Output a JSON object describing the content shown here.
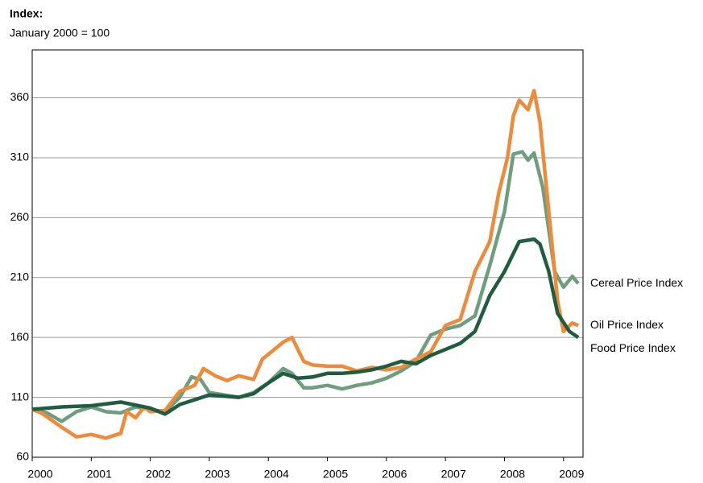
{
  "chart_data": {
    "type": "line",
    "title": "Index:",
    "subtitle": "January 2000 = 100",
    "xlim": [
      2000,
      2009.33
    ],
    "xticks": [
      2000,
      2001,
      2002,
      2003,
      2004,
      2005,
      2006,
      2007,
      2008,
      2009
    ],
    "ylim": [
      60,
      400
    ],
    "yticks": [
      60,
      110,
      160,
      210,
      260,
      310,
      360
    ],
    "grid": true,
    "series": [
      {
        "name": "Cereal Price Index",
        "color": "#6f9e7e",
        "x": [
          2000,
          2000.25,
          2000.5,
          2000.75,
          2001,
          2001.25,
          2001.5,
          2001.75,
          2002,
          2002.25,
          2002.5,
          2002.7,
          2002.85,
          2003,
          2003.25,
          2003.5,
          2003.75,
          2004,
          2004.25,
          2004.4,
          2004.6,
          2004.75,
          2005,
          2005.25,
          2005.5,
          2005.75,
          2006,
          2006.25,
          2006.5,
          2006.75,
          2007,
          2007.25,
          2007.5,
          2007.75,
          2008,
          2008.15,
          2008.3,
          2008.4,
          2008.5,
          2008.65,
          2008.85,
          2009,
          2009.15,
          2009.25
        ],
        "values": [
          100,
          97,
          90,
          98,
          102,
          98,
          97,
          102,
          100,
          98,
          110,
          127,
          125,
          114,
          112,
          110,
          114,
          122,
          134,
          130,
          118,
          118,
          120,
          117,
          120,
          122,
          126,
          132,
          140,
          162,
          167,
          170,
          178,
          220,
          265,
          313,
          315,
          308,
          314,
          285,
          215,
          202,
          211,
          205
        ]
      },
      {
        "name": "Oil Price Index",
        "color": "#ef8a3b",
        "x": [
          2000,
          2000.15,
          2000.3,
          2000.5,
          2000.75,
          2001,
          2001.25,
          2001.5,
          2001.6,
          2001.75,
          2001.9,
          2002,
          2002.25,
          2002.5,
          2002.75,
          2002.9,
          2003.1,
          2003.3,
          2003.5,
          2003.75,
          2003.9,
          2004.1,
          2004.25,
          2004.4,
          2004.6,
          2004.75,
          2005,
          2005.25,
          2005.5,
          2005.75,
          2006,
          2006.25,
          2006.5,
          2006.75,
          2007,
          2007.25,
          2007.5,
          2007.75,
          2007.9,
          2008.05,
          2008.15,
          2008.25,
          2008.4,
          2008.5,
          2008.6,
          2008.75,
          2008.9,
          2009,
          2009.15,
          2009.25
        ],
        "values": [
          100,
          97,
          92,
          85,
          77,
          79,
          76,
          80,
          98,
          93,
          102,
          98,
          99,
          115,
          120,
          134,
          128,
          124,
          128,
          125,
          142,
          150,
          156,
          160,
          140,
          137,
          136,
          136,
          132,
          135,
          133,
          135,
          142,
          148,
          170,
          175,
          215,
          240,
          280,
          310,
          345,
          358,
          350,
          366,
          340,
          265,
          190,
          165,
          172,
          170
        ]
      },
      {
        "name": "Food Price Index",
        "color": "#1f5c40",
        "x": [
          2000,
          2000.5,
          2001,
          2001.5,
          2002,
          2002.25,
          2002.5,
          2002.75,
          2003,
          2003.5,
          2003.75,
          2004,
          2004.25,
          2004.5,
          2004.75,
          2005,
          2005.25,
          2005.5,
          2005.75,
          2006,
          2006.25,
          2006.5,
          2006.75,
          2007,
          2007.25,
          2007.5,
          2007.75,
          2008,
          2008.25,
          2008.5,
          2008.6,
          2008.75,
          2008.9,
          2009.1,
          2009.25
        ],
        "values": [
          100,
          102,
          103,
          106,
          101,
          96,
          104,
          108,
          112,
          110,
          113,
          122,
          130,
          126,
          127,
          130,
          130,
          131,
          133,
          136,
          140,
          138,
          145,
          150,
          155,
          165,
          195,
          215,
          240,
          242,
          238,
          215,
          180,
          165,
          160
        ]
      }
    ]
  }
}
